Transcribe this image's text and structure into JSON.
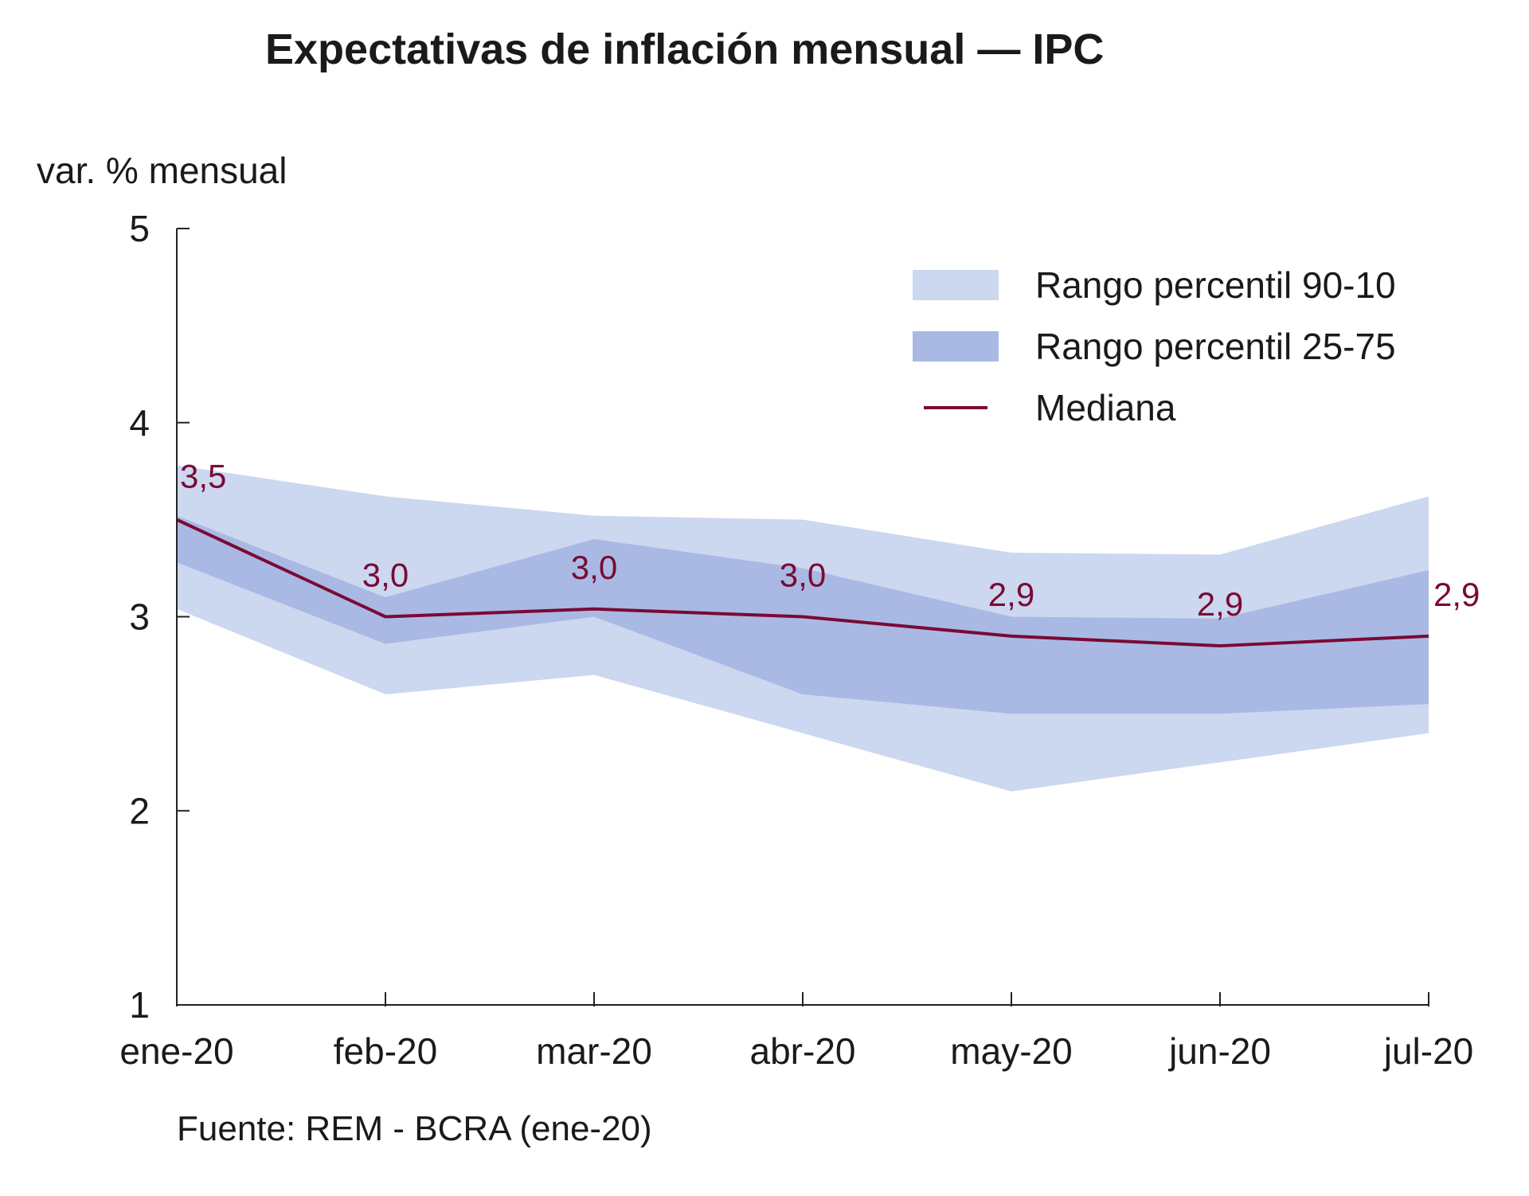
{
  "chart_data": {
    "type": "area",
    "title": "Expectativas de inflación mensual — IPC",
    "ylabel": "var. % mensual",
    "xlabel": "",
    "categories": [
      "ene-20",
      "feb-20",
      "mar-20",
      "abr-20",
      "may-20",
      "jun-20",
      "jul-20"
    ],
    "ylim": [
      1,
      5
    ],
    "yticks": [
      1,
      2,
      3,
      4,
      5
    ],
    "series": [
      {
        "name": "Rango percentil 90-10",
        "kind": "band",
        "color": "#ccd7f0",
        "upper": [
          3.78,
          3.62,
          3.52,
          3.5,
          3.33,
          3.32,
          3.62
        ],
        "lower": [
          3.04,
          2.6,
          2.7,
          2.4,
          2.1,
          2.25,
          2.4
        ]
      },
      {
        "name": "Rango percentil 25-75",
        "kind": "band",
        "color": "#a9b9e4",
        "upper": [
          3.52,
          3.1,
          3.4,
          3.25,
          3.0,
          2.99,
          3.24
        ],
        "lower": [
          3.28,
          2.86,
          3.0,
          2.6,
          2.5,
          2.5,
          2.55
        ]
      },
      {
        "name": "Mediana",
        "kind": "line",
        "color": "#7a0a34",
        "values": [
          3.5,
          3.0,
          3.04,
          3.0,
          2.9,
          2.85,
          2.9
        ]
      }
    ],
    "data_labels": [
      "3,5",
      "3,0",
      "3,0",
      "3,0",
      "2,9",
      "2,9",
      "2,9"
    ],
    "legend": [
      {
        "label": "Rango percentil 90-10",
        "kind": "band",
        "color": "#ccd7f0"
      },
      {
        "label": "Rango percentil 25-75",
        "kind": "band",
        "color": "#a9b9e4"
      },
      {
        "label": "Mediana",
        "kind": "line",
        "color": "#7a0a34"
      }
    ],
    "legend_position": "top-right",
    "grid": false,
    "source": "Fuente: REM - BCRA (ene-20)"
  }
}
